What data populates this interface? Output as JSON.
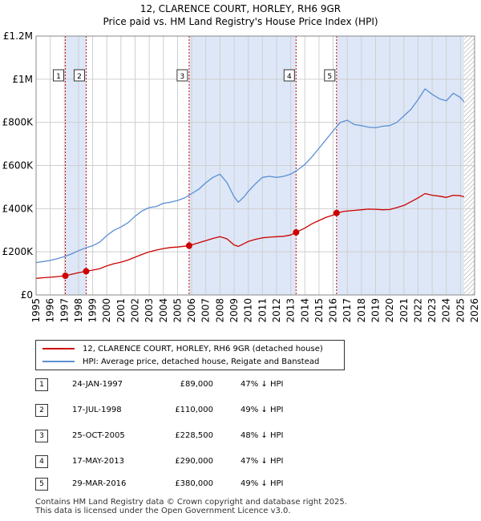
{
  "chart_data": {
    "type": "line",
    "title": "12, CLARENCE COURT, HORLEY, RH6 9GR",
    "subtitle": "Price paid vs. HM Land Registry's House Price Index (HPI)",
    "xlabel": "",
    "ylabel": "",
    "xlim": [
      1995,
      2026
    ],
    "ylim": [
      0,
      1200000
    ],
    "y_ticks": [
      {
        "value": 0,
        "label": "£0"
      },
      {
        "value": 200000,
        "label": "£200K"
      },
      {
        "value": 400000,
        "label": "£400K"
      },
      {
        "value": 600000,
        "label": "£600K"
      },
      {
        "value": 800000,
        "label": "£800K"
      },
      {
        "value": 1000000,
        "label": "£1M"
      },
      {
        "value": 1200000,
        "label": "£1.2M"
      }
    ],
    "x_ticks": [
      "1995",
      "1996",
      "1997",
      "1998",
      "1999",
      "2000",
      "2001",
      "2002",
      "2003",
      "2004",
      "2005",
      "2006",
      "2007",
      "2008",
      "2009",
      "2010",
      "2011",
      "2012",
      "2013",
      "2014",
      "2015",
      "2016",
      "2017",
      "2018",
      "2019",
      "2020",
      "2021",
      "2022",
      "2023",
      "2024",
      "2025",
      "2026"
    ],
    "grid": true,
    "colors": {
      "property": "#cc0000",
      "hpi": "#5b8fd4",
      "shade": "#dde7f7",
      "marker_line": "#cc0000"
    },
    "series": [
      {
        "name": "12, CLARENCE COURT, HORLEY, RH6 9GR (detached house)",
        "color": "#cc0000",
        "x": [
          1995.0,
          1995.5,
          1996.0,
          1996.5,
          1997.07,
          1997.5,
          1998.0,
          1998.54,
          1999.0,
          1999.5,
          2000.0,
          2000.5,
          2001.0,
          2001.5,
          2002.0,
          2002.5,
          2003.0,
          2003.5,
          2004.0,
          2004.5,
          2005.0,
          2005.5,
          2005.82,
          2006.5,
          2007.0,
          2007.5,
          2008.0,
          2008.5,
          2009.0,
          2009.3,
          2009.7,
          2010.0,
          2010.5,
          2011.0,
          2011.5,
          2012.0,
          2012.5,
          2013.0,
          2013.38,
          2014.0,
          2014.5,
          2015.0,
          2015.5,
          2016.0,
          2016.24,
          2016.8,
          2017.5,
          2018.0,
          2018.5,
          2019.0,
          2019.5,
          2020.0,
          2020.5,
          2021.0,
          2021.5,
          2022.0,
          2022.5,
          2023.0,
          2023.5,
          2024.0,
          2024.5,
          2025.0,
          2025.25
        ],
        "y": [
          77000,
          80000,
          82000,
          85000,
          89000,
          96000,
          103000,
          110000,
          115000,
          122000,
          135000,
          145000,
          152000,
          162000,
          175000,
          188000,
          200000,
          208000,
          215000,
          220000,
          222000,
          226000,
          228500,
          242000,
          252000,
          262000,
          270000,
          260000,
          232000,
          225000,
          238000,
          248000,
          258000,
          265000,
          268000,
          270000,
          272000,
          278000,
          290000,
          310000,
          330000,
          345000,
          360000,
          370000,
          380000,
          388000,
          392000,
          395000,
          398000,
          397000,
          395000,
          396000,
          405000,
          415000,
          432000,
          450000,
          470000,
          462000,
          458000,
          452000,
          462000,
          460000,
          455000
        ]
      },
      {
        "name": "HPI: Average price, detached house, Reigate and Banstead",
        "color": "#5b8fd4",
        "x": [
          1995.0,
          1995.5,
          1996.0,
          1996.5,
          1997.0,
          1997.5,
          1998.0,
          1998.5,
          1999.0,
          1999.5,
          2000.0,
          2000.5,
          2001.0,
          2001.5,
          2002.0,
          2002.5,
          2003.0,
          2003.5,
          2004.0,
          2004.5,
          2005.0,
          2005.5,
          2006.0,
          2006.5,
          2007.0,
          2007.5,
          2008.0,
          2008.5,
          2009.0,
          2009.3,
          2009.7,
          2010.0,
          2010.5,
          2011.0,
          2011.5,
          2012.0,
          2012.5,
          2013.0,
          2013.5,
          2014.0,
          2014.5,
          2015.0,
          2015.5,
          2016.0,
          2016.5,
          2017.0,
          2017.5,
          2018.0,
          2018.5,
          2019.0,
          2019.5,
          2020.0,
          2020.5,
          2021.0,
          2021.5,
          2022.0,
          2022.5,
          2023.0,
          2023.5,
          2024.0,
          2024.5,
          2025.0,
          2025.25
        ],
        "y": [
          150000,
          155000,
          160000,
          168000,
          178000,
          190000,
          205000,
          218000,
          228000,
          245000,
          275000,
          300000,
          315000,
          335000,
          365000,
          390000,
          405000,
          410000,
          425000,
          430000,
          438000,
          450000,
          470000,
          490000,
          520000,
          545000,
          560000,
          520000,
          455000,
          430000,
          455000,
          480000,
          515000,
          545000,
          550000,
          545000,
          550000,
          560000,
          580000,
          605000,
          640000,
          680000,
          720000,
          760000,
          800000,
          810000,
          790000,
          785000,
          778000,
          775000,
          782000,
          785000,
          800000,
          830000,
          860000,
          905000,
          955000,
          930000,
          910000,
          900000,
          935000,
          915000,
          895000
        ]
      }
    ],
    "sale_markers": [
      {
        "label": "1",
        "x": 1997.07
      },
      {
        "label": "2",
        "x": 1998.54
      },
      {
        "label": "3",
        "x": 2005.82
      },
      {
        "label": "4",
        "x": 2013.38
      },
      {
        "label": "5",
        "x": 2016.24
      }
    ],
    "shaded_ranges": [
      [
        1997.07,
        1998.54
      ],
      [
        2005.82,
        2013.38
      ],
      [
        2016.24,
        2025.25
      ]
    ],
    "hatched_range": [
      2025.25,
      2026.0
    ],
    "legend_position": "bottom"
  },
  "legend": {
    "property_label": "12, CLARENCE COURT, HORLEY, RH6 9GR (detached house)",
    "hpi_label": "HPI: Average price, detached house, Reigate and Banstead"
  },
  "sales": [
    {
      "num": "1",
      "date": "24-JAN-1997",
      "price": "£89,000",
      "hpi": "47% ↓ HPI"
    },
    {
      "num": "2",
      "date": "17-JUL-1998",
      "price": "£110,000",
      "hpi": "49% ↓ HPI"
    },
    {
      "num": "3",
      "date": "25-OCT-2005",
      "price": "£228,500",
      "hpi": "48% ↓ HPI"
    },
    {
      "num": "4",
      "date": "17-MAY-2013",
      "price": "£290,000",
      "hpi": "47% ↓ HPI"
    },
    {
      "num": "5",
      "date": "29-MAR-2016",
      "price": "£380,000",
      "hpi": "49% ↓ HPI"
    }
  ],
  "footer": {
    "line1": "Contains HM Land Registry data © Crown copyright and database right 2025.",
    "line2": "This data is licensed under the Open Government Licence v3.0."
  }
}
